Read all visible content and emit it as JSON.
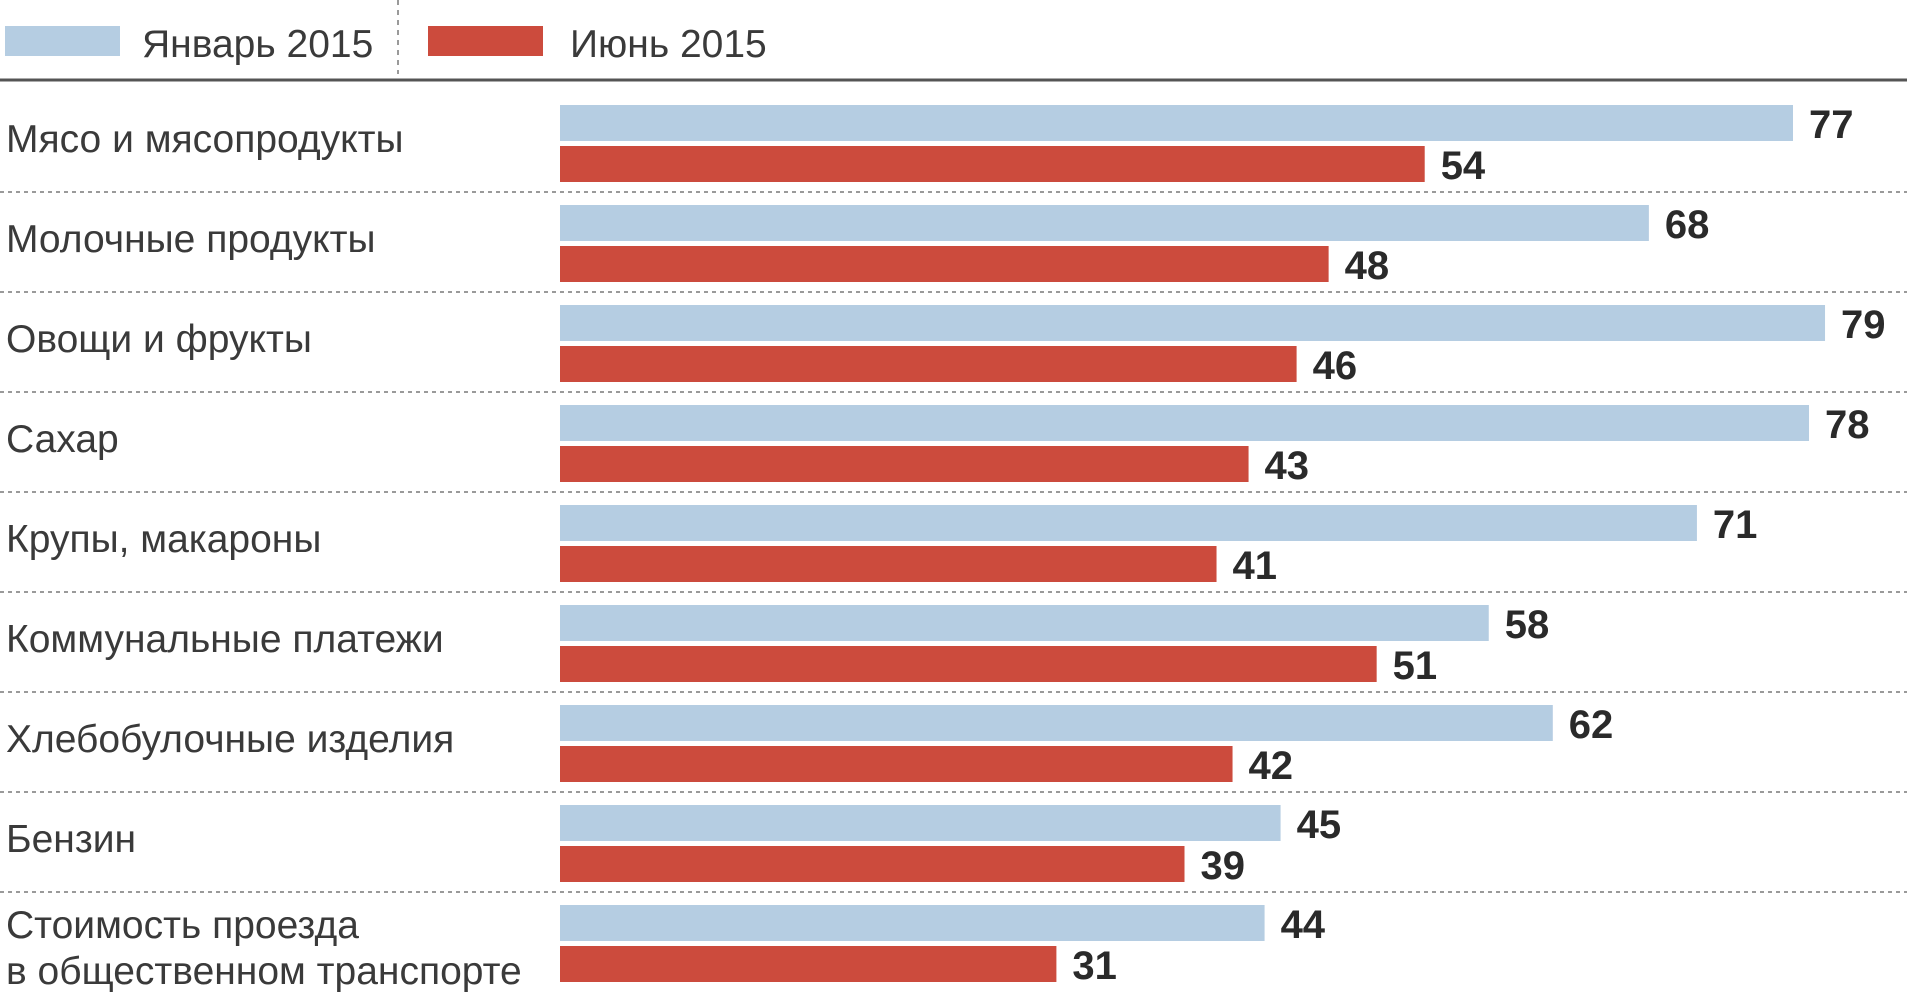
{
  "colors": {
    "jan": "#b5cde2",
    "jun": "#cc4b3d",
    "text": "#3a3a3a",
    "axis": "#555555",
    "separator": "#9a9a9a"
  },
  "chart_data": {
    "type": "bar",
    "orientation": "horizontal",
    "legend_position": "top-left",
    "grid": false,
    "xlim": [
      0,
      85
    ],
    "series": [
      {
        "name": "Январь 2015",
        "color": "#b5cde2",
        "values": [
          77,
          68,
          79,
          78,
          71,
          58,
          62,
          45,
          44
        ]
      },
      {
        "name": "Июнь 2015",
        "color": "#cc4b3d",
        "values": [
          54,
          48,
          46,
          43,
          41,
          51,
          42,
          39,
          31
        ]
      }
    ],
    "categories": [
      [
        "Мясо и мясопродукты"
      ],
      [
        "Молочные продукты"
      ],
      [
        "Овощи и фрукты"
      ],
      [
        "Сахар"
      ],
      [
        "Крупы, макароны"
      ],
      [
        "Коммунальные платежи"
      ],
      [
        "Хлебобулочные изделия"
      ],
      [
        "Бензин"
      ],
      [
        "Стоимость проезда",
        "в общественном транспорте"
      ]
    ]
  }
}
